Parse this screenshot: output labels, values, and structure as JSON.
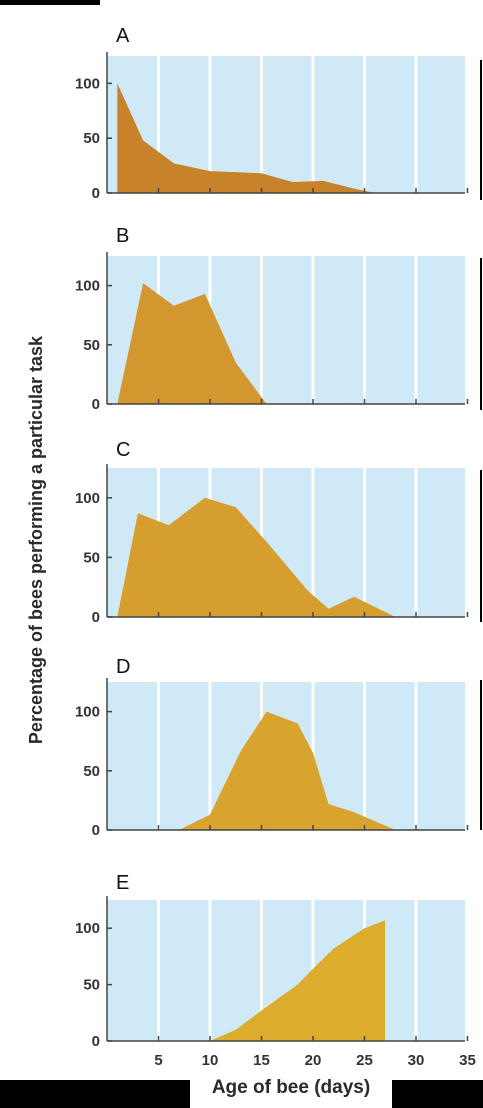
{
  "chart_data": {
    "type": "area",
    "xlabel": "Age of bee (days)",
    "ylabel": "Percentage of bees performing a particular task",
    "xlim": [
      0,
      35
    ],
    "ylim": [
      0,
      125
    ],
    "x_ticks": [
      5,
      10,
      15,
      20,
      25,
      30,
      35
    ],
    "y_ticks": [
      0,
      50,
      100
    ],
    "panels": [
      {
        "label": "A",
        "color": "#C8832A",
        "points": [
          [
            1,
            100
          ],
          [
            3.5,
            48
          ],
          [
            6.5,
            27
          ],
          [
            10,
            20
          ],
          [
            15,
            18
          ],
          [
            18,
            10
          ],
          [
            21,
            11
          ],
          [
            24,
            4
          ],
          [
            26,
            0
          ]
        ]
      },
      {
        "label": "B",
        "color": "#D4962E",
        "points": [
          [
            1,
            0
          ],
          [
            3.5,
            102
          ],
          [
            6.5,
            83
          ],
          [
            9.5,
            93
          ],
          [
            12.5,
            35
          ],
          [
            15.5,
            0
          ]
        ]
      },
      {
        "label": "C",
        "color": "#D69E2E",
        "points": [
          [
            1,
            0
          ],
          [
            3,
            87
          ],
          [
            6,
            77
          ],
          [
            9.5,
            100
          ],
          [
            12.5,
            92
          ],
          [
            15.5,
            63
          ],
          [
            19.5,
            22
          ],
          [
            21.5,
            7
          ],
          [
            24,
            17
          ],
          [
            28,
            0
          ],
          [
            35,
            0
          ]
        ]
      },
      {
        "label": "D",
        "color": "#D8A32F",
        "points": [
          [
            7,
            0
          ],
          [
            10,
            13
          ],
          [
            13,
            67
          ],
          [
            15.5,
            100
          ],
          [
            18.5,
            90
          ],
          [
            20,
            65
          ],
          [
            21.5,
            22
          ],
          [
            24,
            15
          ],
          [
            28,
            0
          ]
        ]
      },
      {
        "label": "E",
        "color": "#DCAD2C",
        "points": [
          [
            10,
            0
          ],
          [
            12.5,
            10
          ],
          [
            15,
            27
          ],
          [
            18.5,
            50
          ],
          [
            20,
            64
          ],
          [
            22,
            82
          ],
          [
            25,
            100
          ],
          [
            27,
            107
          ],
          [
            27,
            0
          ]
        ]
      }
    ]
  }
}
